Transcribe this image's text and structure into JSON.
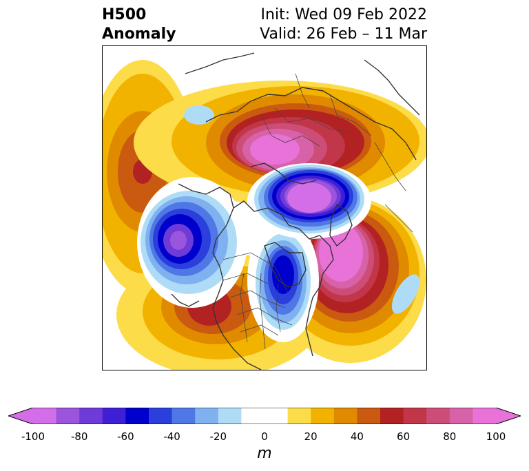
{
  "title": {
    "left_line1": "H500",
    "left_line2": "Anomaly",
    "right_line1": "Init: Wed 09 Feb 2022",
    "right_line2": "Valid: 26 Feb – 11 Mar"
  },
  "colorbar": {
    "unit": "m",
    "min": -100,
    "max": 100,
    "extend": "both",
    "levels": [
      -100,
      -90,
      -80,
      -70,
      -60,
      -50,
      -40,
      -30,
      -20,
      -10,
      10,
      20,
      30,
      40,
      50,
      60,
      70,
      80,
      90,
      100
    ],
    "colors": [
      "#d46ee8",
      "#9a55dc",
      "#6e3bd8",
      "#3f1fd6",
      "#0000cc",
      "#2a3fdc",
      "#4f78e6",
      "#7fb0f0",
      "#aedcf7",
      "#ffffff",
      "#fddc4a",
      "#f2b300",
      "#e08a00",
      "#c95a10",
      "#b22222",
      "#c2364a",
      "#cc4e78",
      "#d862a8",
      "#e872d8"
    ],
    "tick_values": [
      -100,
      -80,
      -60,
      -40,
      -20,
      0,
      20,
      40,
      60,
      80,
      100
    ],
    "tick_labels": [
      "-100",
      "-80",
      "-60",
      "-40",
      "-20",
      "0",
      "20",
      "40",
      "60",
      "80",
      "100"
    ]
  },
  "map": {
    "projection": "north-polar-stereographic",
    "boundaries": [
      "coastlines",
      "country-borders",
      "us-state-borders"
    ],
    "anomaly_centers": [
      {
        "region": "North Pacific",
        "value": 60
      },
      {
        "region": "Alaska / Bering Sea",
        "value": -80
      },
      {
        "region": "Western North America",
        "value": 50
      },
      {
        "region": "Hudson Bay / Eastern Canada",
        "value": -70
      },
      {
        "region": "Central Arctic / Siberia",
        "value": -90
      },
      {
        "region": "Northern Eurasia",
        "value": 90
      },
      {
        "region": "North Atlantic",
        "value": 90
      }
    ]
  }
}
